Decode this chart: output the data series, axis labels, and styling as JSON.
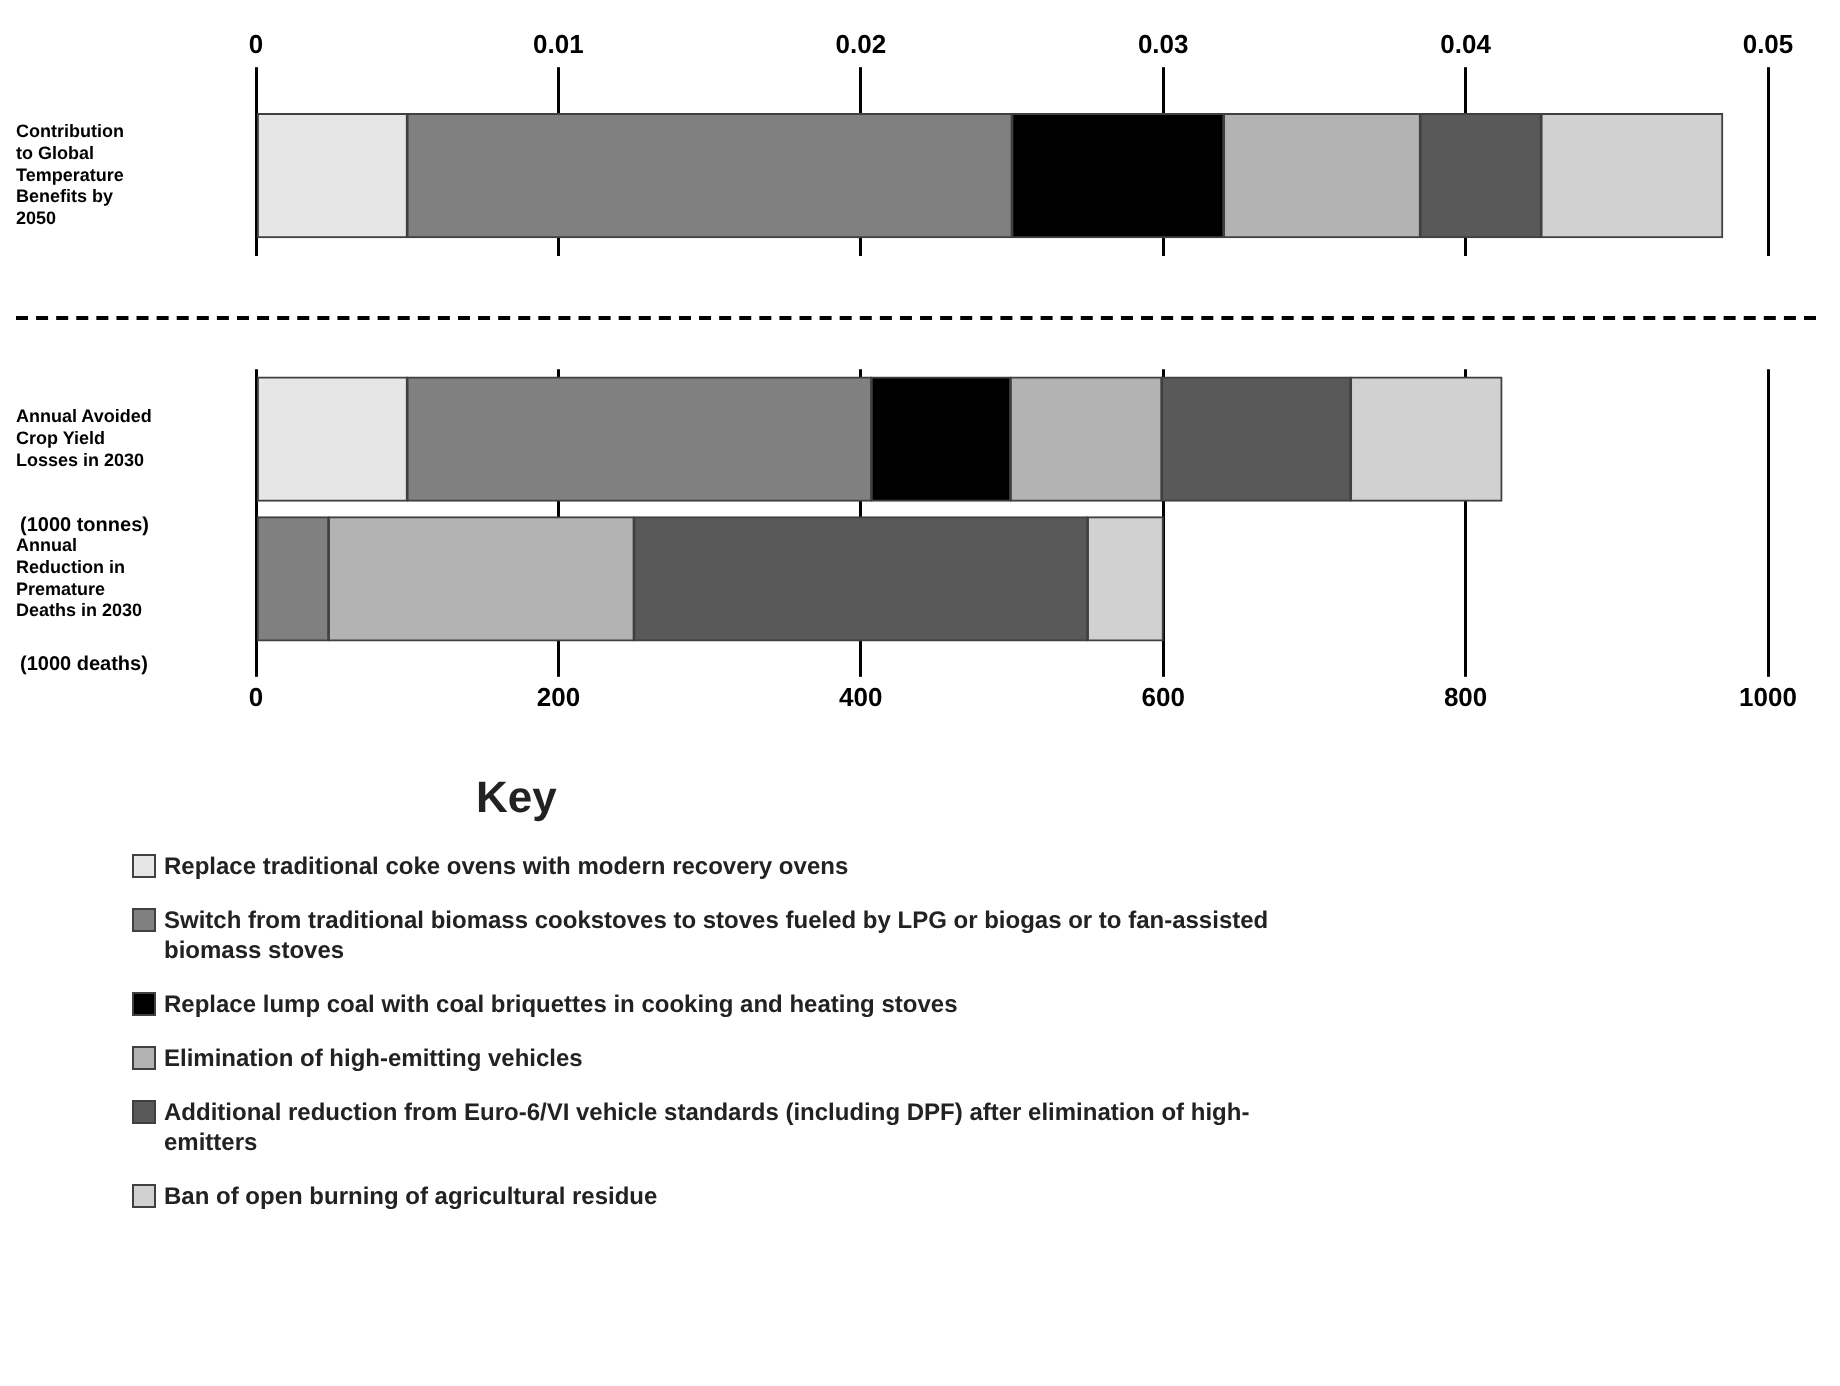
{
  "chart_data": [
    {
      "type": "bar",
      "orientation": "horizontal",
      "stacked": true,
      "categories": [
        "Contribution to Global Temperature Benefits by 2050"
      ],
      "series": [
        {
          "color": "#e6e6e6",
          "values": [
            0.005
          ]
        },
        {
          "color": "#808080",
          "values": [
            0.02
          ]
        },
        {
          "color": "#000000",
          "values": [
            0.007
          ]
        },
        {
          "color": "#b3b3b3",
          "values": [
            0.0065
          ]
        },
        {
          "color": "#595959",
          "values": [
            0.004
          ]
        },
        {
          "color": "#d1d1d1",
          "values": [
            0.006
          ]
        }
      ],
      "xlim": [
        0,
        0.05
      ],
      "xticks": [
        0,
        0.01,
        0.02,
        0.03,
        0.04,
        0.05
      ],
      "grid": "x",
      "legend": false
    },
    {
      "type": "bar",
      "orientation": "horizontal",
      "stacked": true,
      "categories": [
        "Annual Avoided Crop Yield Losses in 2030",
        "Annual Reduction in Premature Deaths in 2030"
      ],
      "series": [
        {
          "name": "Replace traditional coke ovens with modern recovery ovens",
          "color": "#e6e6e6",
          "values": [
            100,
            null
          ]
        },
        {
          "name": "Switch from traditional biomass cookstoves to stoves fueled by LPG or biogas or to fan-assisted biomass stoves",
          "color": "#808080",
          "values": [
            307,
            48
          ]
        },
        {
          "name": "Replace lump coal with coal briquettes in cooking and heating stoves",
          "color": "#000000",
          "values": [
            92,
            null
          ]
        },
        {
          "name": "Elimination of high-emitting vehicles",
          "color": "#b3b3b3",
          "values": [
            100,
            202
          ]
        },
        {
          "name": "Additional reduction from Euro-6/VI vehicle standards (including DPF) after elimination of high-emitters",
          "color": "#595959",
          "values": [
            125,
            300
          ]
        },
        {
          "name": "Ban of open burning of agricultural residue",
          "color": "#d1d1d1",
          "values": [
            100,
            50
          ]
        }
      ],
      "xlim": [
        0,
        1000
      ],
      "xticks": [
        0,
        200,
        400,
        600,
        800,
        1000
      ],
      "grid": "x",
      "legend": "bottom",
      "legend_title": "Key",
      "annotations": [
        "(1000 tonnes)",
        "(1000 deaths)"
      ]
    }
  ]
}
